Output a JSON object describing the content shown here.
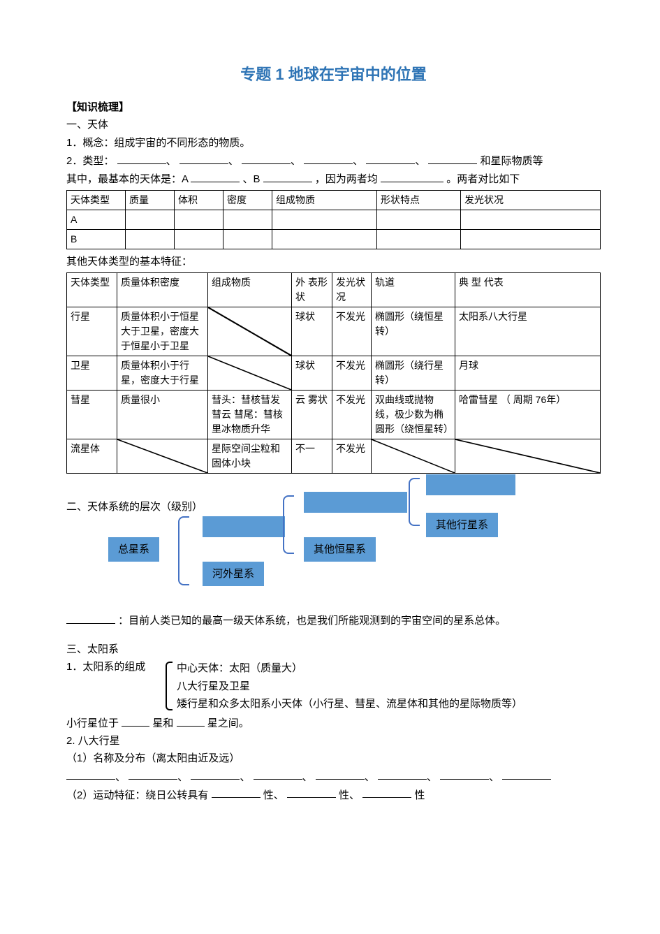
{
  "colors": {
    "accent": "#2e74b5",
    "box": "#5b9bd5",
    "brace": "#4472c4",
    "border": "#000000",
    "text": "#000000",
    "bg": "#ffffff"
  },
  "title": "专题 1  地球在宇宙中的位置",
  "h_knowledge": "【知识梳理】",
  "s1": {
    "heading": "一、天体",
    "p1": "1．概念：组成宇宙的不同形态的物质。",
    "p2_a": "2．类型：",
    "p2_b": "和星际物质等",
    "p3_a": "其中，最基本的天体是：A",
    "p3_b": "、B",
    "p3_c": "，因为两者均",
    "p3_d": "。两者对比如下",
    "table1": {
      "headers": [
        "天体类型",
        "质量",
        "体积",
        "密度",
        "组成物质",
        "形状特点",
        "发光状况"
      ],
      "rows": [
        [
          "A",
          "",
          "",
          "",
          "",
          "",
          ""
        ],
        [
          "B",
          "",
          "",
          "",
          "",
          "",
          ""
        ]
      ]
    },
    "p4": "其他天体类型的基本特征：",
    "table2": {
      "headers": [
        "天体类型",
        "质量体积密度",
        "组成物质",
        "外 表形状",
        "发光状况",
        "轨道",
        "典 型 代表"
      ],
      "rows": [
        {
          "c0": "行星",
          "c1": "质量体积小于恒星大于卫星，密度大于恒星小于卫星",
          "c2": "__diag__",
          "c3": "球状",
          "c4": "不发光",
          "c5": "椭圆形（绕恒星转）",
          "c6": "太阳系八大行星"
        },
        {
          "c0": "卫星",
          "c1": "质量体积小于行星，密度大于行星",
          "c2": "__diag__",
          "c3": "球状",
          "c4": "不发光",
          "c5": "椭圆形（绕行星转）",
          "c6": "月球"
        },
        {
          "c0": "彗星",
          "c1": "质量很小",
          "c2": "彗头：彗核彗发彗云\n彗尾：彗核里冰物质升华",
          "c3": "云 雾状",
          "c4": "不发光",
          "c5": "双曲线或抛物线，极少数为椭圆形（绕恒星转）",
          "c6": "哈雷彗星 （ 周期  76年）"
        },
        {
          "c0": "流星体",
          "c1": "__diag__",
          "c2": "星际空间尘粒和固体小块",
          "c3": "不一",
          "c4": "不发光",
          "c5": "__diag__",
          "c6": "__diag__"
        }
      ]
    }
  },
  "s2": {
    "heading": "二、天体系统的层次（级别）",
    "boxes": {
      "b1": "总星系",
      "b2": "",
      "b3": "河外星系",
      "b4": "",
      "b5": "其他恒星系",
      "b6": "",
      "b7": "其他行星系"
    },
    "note": "：目前人类已知的最高一级天体系统，也是我们所能观测到的宇宙空间的星系总体。"
  },
  "s3": {
    "heading": "三、太阳系",
    "p1_label": "1．太阳系的组成",
    "items": [
      "中心天体：太阳（质量大）",
      "八大行星及卫星",
      "矮行星和众多太阳系小天体（小行星、彗星、流星体和其他的星际物质等）"
    ],
    "p2_a": "小行星位于",
    "p2_b": "星和",
    "p2_c": "星之间。",
    "p3": "2.    八大行星",
    "p4": "（1）名称及分布（离太阳由近及远）",
    "p5_a": "（2）运动特征：绕日公转具有",
    "p5_b": "性、",
    "p5_c": "性、",
    "p5_d": "性"
  }
}
